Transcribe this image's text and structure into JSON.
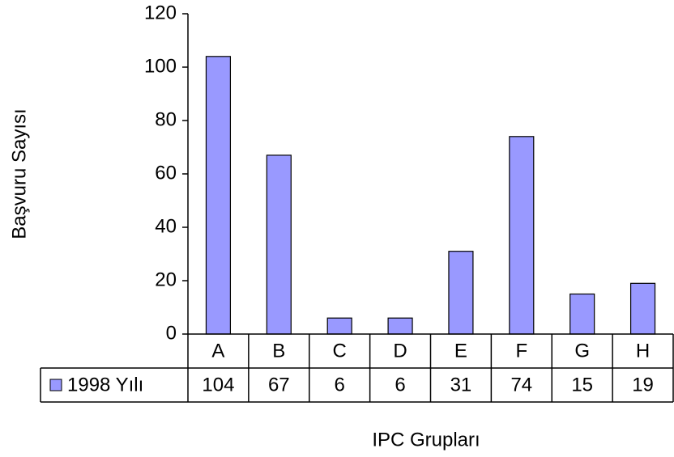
{
  "chart_data": {
    "type": "bar",
    "x_label": "IPC Grupları",
    "y_label": "Başvuru Sayısı",
    "categories": [
      "A",
      "B",
      "C",
      "D",
      "E",
      "F",
      "G",
      "H"
    ],
    "series": [
      {
        "name": "1998 Yılı",
        "color": "#9999ff",
        "values": [
          104,
          67,
          6,
          6,
          31,
          74,
          15,
          19
        ]
      }
    ],
    "ylim": [
      0,
      120
    ],
    "yticks": [
      0,
      20,
      40,
      60,
      80,
      100,
      120
    ],
    "data_table": true
  }
}
